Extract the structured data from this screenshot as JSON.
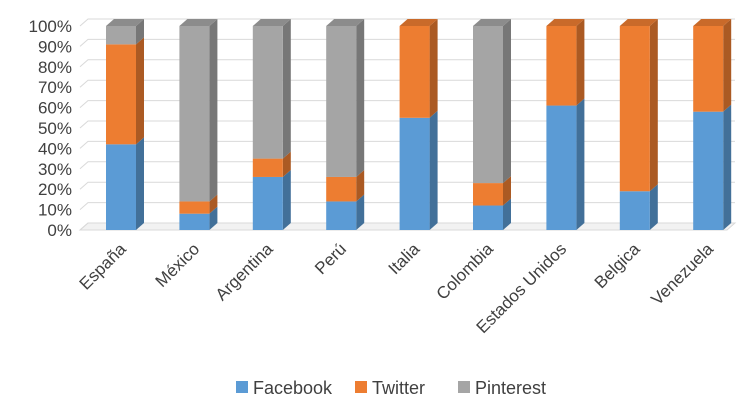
{
  "chart_data": {
    "type": "bar",
    "stacked": true,
    "three_d": true,
    "categories": [
      "España",
      "México",
      "Argentina",
      "Perú",
      "Italia",
      "Colombia",
      "Estados Unidos",
      "Belgica",
      "Venezuela"
    ],
    "series": [
      {
        "name": "Facebook",
        "color": "#5B9BD5",
        "values": [
          42,
          8,
          26,
          14,
          55,
          12,
          61,
          19,
          58
        ]
      },
      {
        "name": "Twitter",
        "color": "#ED7D31",
        "values": [
          49,
          6,
          9,
          12,
          45,
          11,
          39,
          81,
          42
        ]
      },
      {
        "name": "Pinterest",
        "color": "#A5A5A5",
        "values": [
          9,
          86,
          65,
          74,
          0,
          77,
          0,
          0,
          0
        ]
      }
    ],
    "yticks": [
      "0%",
      "10%",
      "20%",
      "30%",
      "40%",
      "50%",
      "60%",
      "70%",
      "80%",
      "90%",
      "100%"
    ],
    "ylim": [
      0,
      100
    ],
    "grid": true,
    "legend_position": "bottom"
  }
}
